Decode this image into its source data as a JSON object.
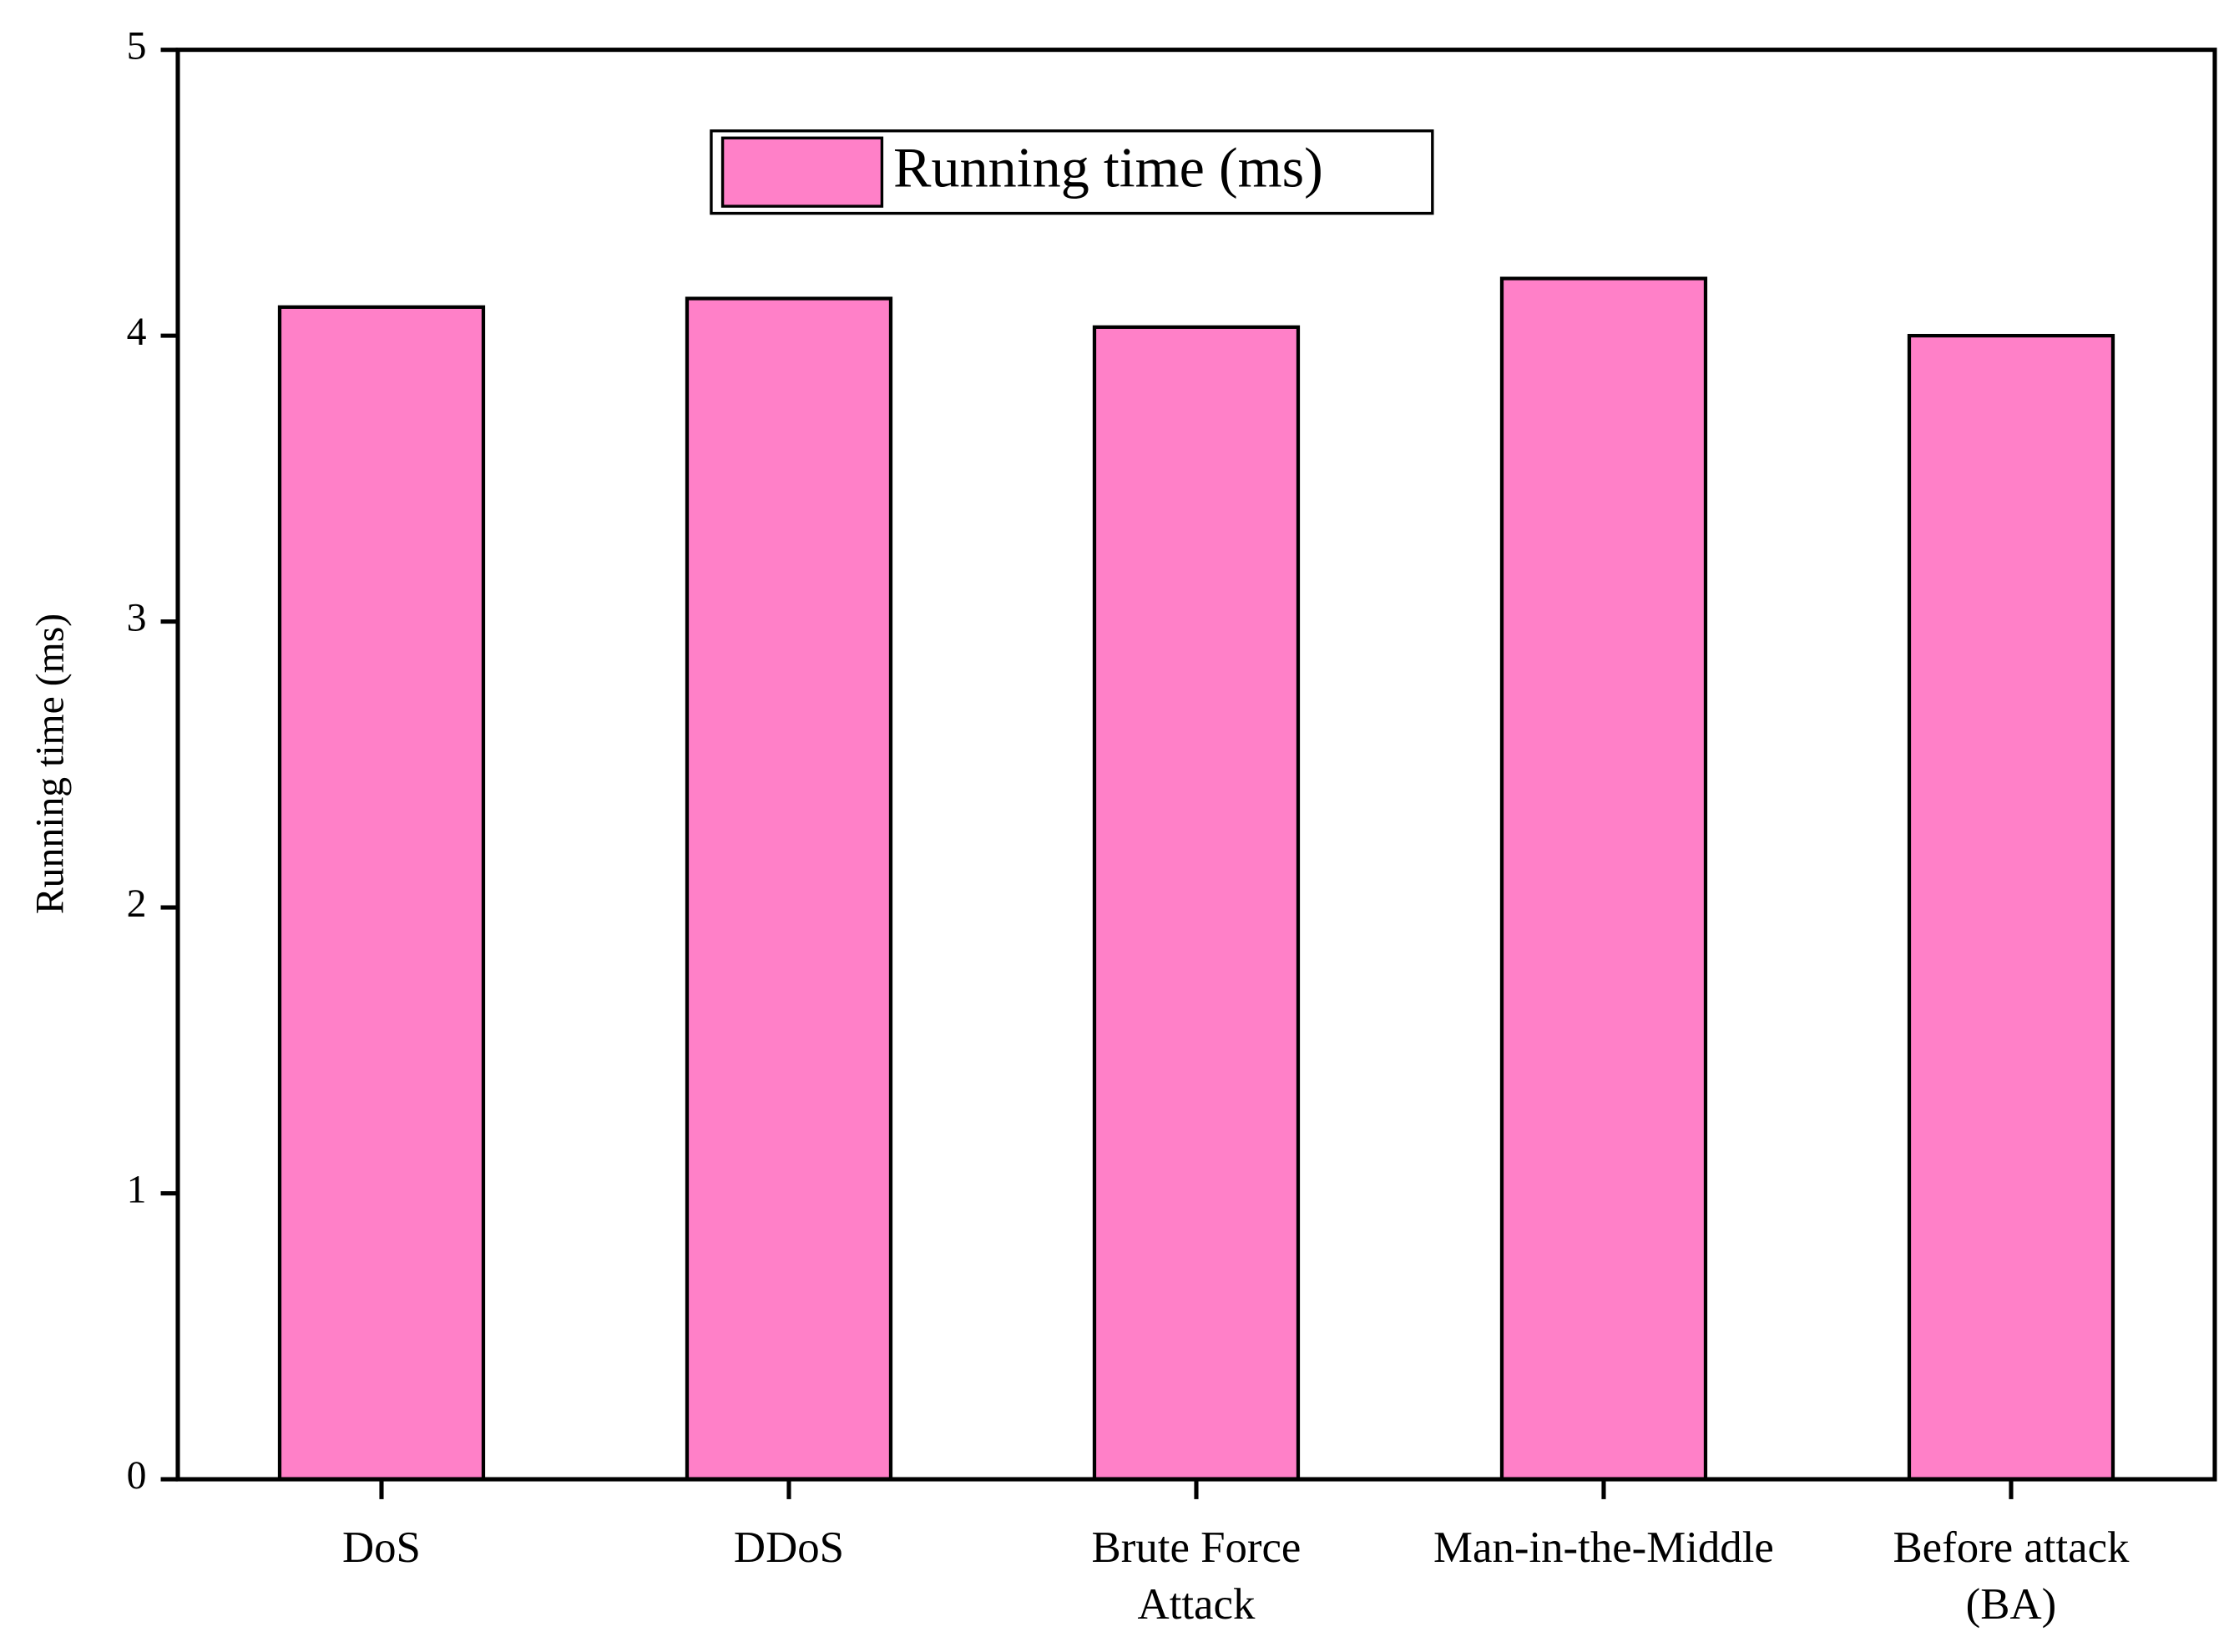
{
  "chart_data": {
    "type": "bar",
    "y_label": "Running time (ms)",
    "categories": [
      "DoS",
      "DDoS",
      "Brute Force\nAttack",
      "Man-in-the-Middle",
      "Before attack\n(BA)"
    ],
    "series": [
      {
        "name": "Running time (ms)",
        "color": "#ff80c8",
        "values": [
          4.1,
          4.13,
          4.03,
          4.2,
          4.0
        ]
      }
    ],
    "ylim": [
      0,
      5
    ],
    "yticks": [
      0,
      1,
      2,
      3,
      4,
      5
    ],
    "legend": "top"
  }
}
